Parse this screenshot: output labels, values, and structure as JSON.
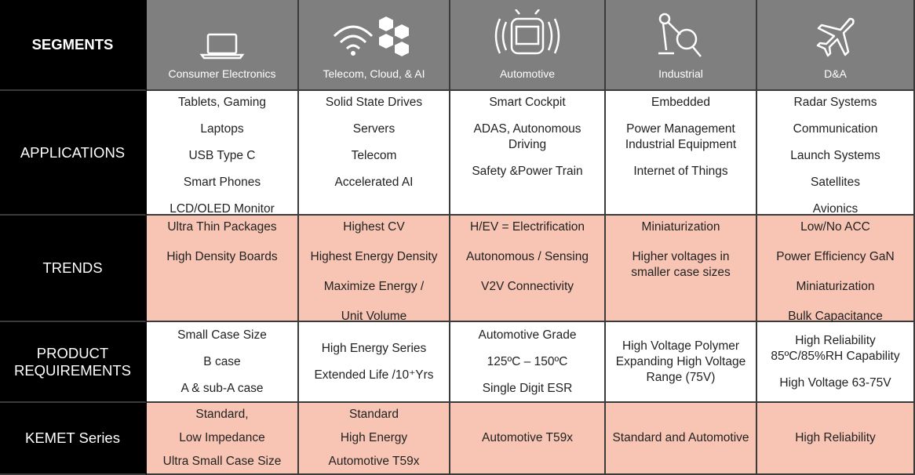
{
  "segments": {
    "label": "SEGMENTS",
    "items": [
      "Consumer Electronics",
      "Telecom, Cloud, & AI",
      "Automotive",
      "Industrial",
      "D&A"
    ]
  },
  "rows": [
    {
      "label": "APPLICATIONS",
      "cells": [
        [
          "Tablets, Gaming",
          "Laptops",
          "USB Type C",
          "Smart Phones",
          "LCD/OLED Monitor"
        ],
        [
          "Solid State Drives",
          "Servers",
          "Telecom",
          "Accelerated AI"
        ],
        [
          "Smart Cockpit",
          "ADAS, Autonomous Driving",
          "Safety &Power Train"
        ],
        [
          "Embedded",
          "Power Management Industrial Equipment",
          "Internet of Things"
        ],
        [
          "Radar Systems",
          "Communication",
          "Launch Systems",
          "Satellites",
          "Avionics"
        ]
      ]
    },
    {
      "label": "TRENDS",
      "cells": [
        [
          "Ultra Thin Packages",
          "High Density Boards"
        ],
        [
          "Highest CV",
          "Highest Energy Density",
          "Maximize Energy /",
          "Unit Volume"
        ],
        [
          "H/EV = Electrification",
          "Autonomous / Sensing",
          "V2V Connectivity"
        ],
        [
          "Miniaturization",
          "Higher voltages in smaller case sizes"
        ],
        [
          "Low/No ACC",
          "Power Efficiency GaN",
          "Miniaturization",
          "Bulk Capacitance"
        ]
      ]
    },
    {
      "label": "PRODUCT REQUIREMENTS",
      "cells": [
        [
          "Small Case Size",
          "B case",
          "A & sub-A case"
        ],
        [
          "High Energy Series",
          "Extended Life /10⁺Yrs"
        ],
        [
          "Automotive Grade",
          "125ºC – 150ºC",
          "Single Digit ESR"
        ],
        [
          "High Voltage Polymer Expanding High Voltage Range (75V)"
        ],
        [
          "High Reliability 85ºC/85%RH Capability",
          "High Voltage 63-75V"
        ]
      ]
    },
    {
      "label": "KEMET Series",
      "cells": [
        [
          "Standard,",
          "Low Impedance",
          "Ultra Small Case Size"
        ],
        [
          "Standard",
          "High Energy",
          "Automotive T59x"
        ],
        [
          "Automotive T59x"
        ],
        [
          "Standard and Automotive"
        ],
        [
          "High Reliability"
        ]
      ]
    }
  ]
}
